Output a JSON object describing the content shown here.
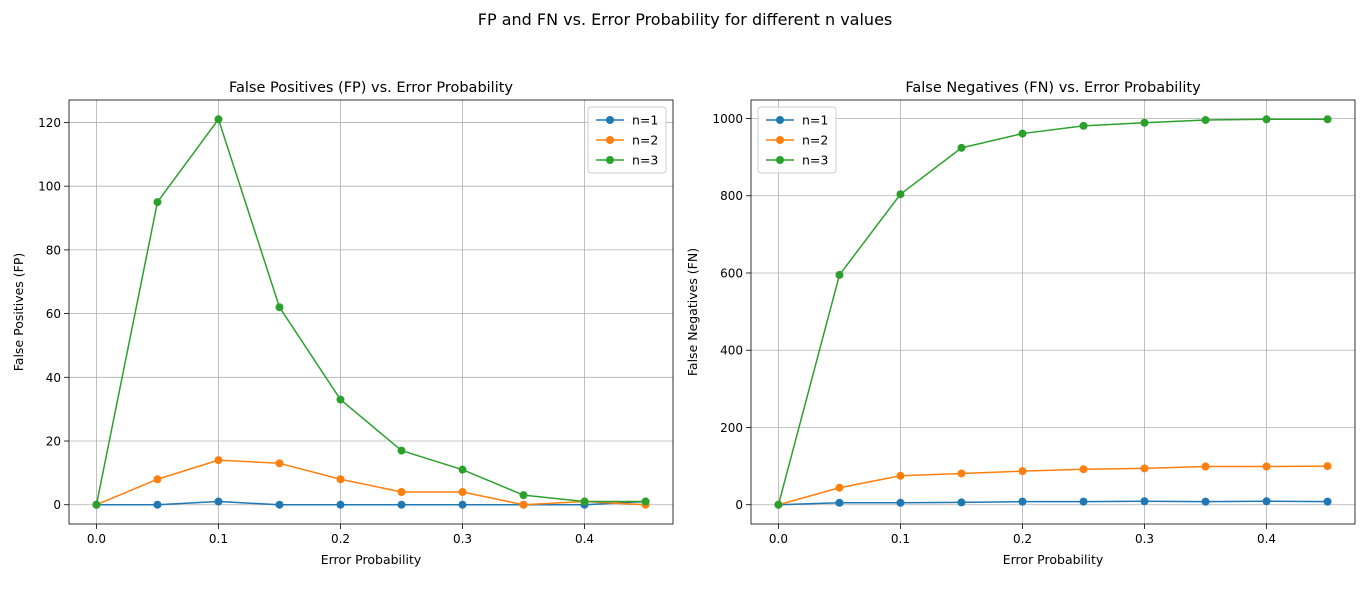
{
  "figure": {
    "suptitle": "FP and FN vs. Error Probability for different n values"
  },
  "colors": {
    "n1": "#1f77b4",
    "n2": "#ff7f0e",
    "n3": "#2ca02c",
    "grid": "#b0b0b0",
    "axes": "#000000"
  },
  "chart_data": [
    {
      "type": "line",
      "title": "False Positives (FP) vs. Error Probability",
      "xlabel": "Error Probability",
      "ylabel": "False Positives (FP)",
      "x": [
        0.0,
        0.05,
        0.1,
        0.15,
        0.2,
        0.25,
        0.3,
        0.35,
        0.4,
        0.45
      ],
      "xlim": [
        -0.0225,
        0.4725
      ],
      "ylim": [
        -6.05,
        127.05
      ],
      "xticks": [
        0.0,
        0.1,
        0.2,
        0.3,
        0.4
      ],
      "xtick_labels": [
        "0.0",
        "0.1",
        "0.2",
        "0.3",
        "0.4"
      ],
      "yticks": [
        0,
        20,
        40,
        60,
        80,
        100,
        120
      ],
      "ytick_labels": [
        "0",
        "20",
        "40",
        "60",
        "80",
        "100",
        "120"
      ],
      "grid": true,
      "legend_position": "top-right",
      "series": [
        {
          "name": "n=1",
          "color": "#1f77b4",
          "values": [
            0,
            0,
            1,
            0,
            0,
            0,
            0,
            0,
            0,
            1
          ]
        },
        {
          "name": "n=2",
          "color": "#ff7f0e",
          "values": [
            0,
            8,
            14,
            13,
            8,
            4,
            4,
            0,
            1,
            0
          ]
        },
        {
          "name": "n=3",
          "color": "#2ca02c",
          "values": [
            0,
            95,
            121,
            62,
            33,
            17,
            11,
            3,
            1,
            1
          ]
        }
      ]
    },
    {
      "type": "line",
      "title": "False Negatives (FN) vs. Error Probability",
      "xlabel": "Error Probability",
      "ylabel": "False Negatives (FN)",
      "x": [
        0.0,
        0.05,
        0.1,
        0.15,
        0.2,
        0.25,
        0.3,
        0.35,
        0.4,
        0.45
      ],
      "xlim": [
        -0.0225,
        0.4725
      ],
      "ylim": [
        -49.9,
        1047.9
      ],
      "xticks": [
        0.0,
        0.1,
        0.2,
        0.3,
        0.4
      ],
      "xtick_labels": [
        "0.0",
        "0.1",
        "0.2",
        "0.3",
        "0.4"
      ],
      "yticks": [
        0,
        200,
        400,
        600,
        800,
        1000
      ],
      "ytick_labels": [
        "0",
        "200",
        "400",
        "600",
        "800",
        "1000"
      ],
      "grid": true,
      "legend_position": "top-left",
      "series": [
        {
          "name": "n=1",
          "color": "#1f77b4",
          "values": [
            0,
            5,
            5,
            6,
            8,
            8,
            9,
            8,
            9,
            8
          ]
        },
        {
          "name": "n=2",
          "color": "#ff7f0e",
          "values": [
            0,
            44,
            75,
            81,
            87,
            92,
            94,
            99,
            99,
            100
          ]
        },
        {
          "name": "n=3",
          "color": "#2ca02c",
          "values": [
            0,
            595,
            804,
            924,
            961,
            981,
            989,
            996,
            998,
            998
          ]
        }
      ]
    }
  ]
}
